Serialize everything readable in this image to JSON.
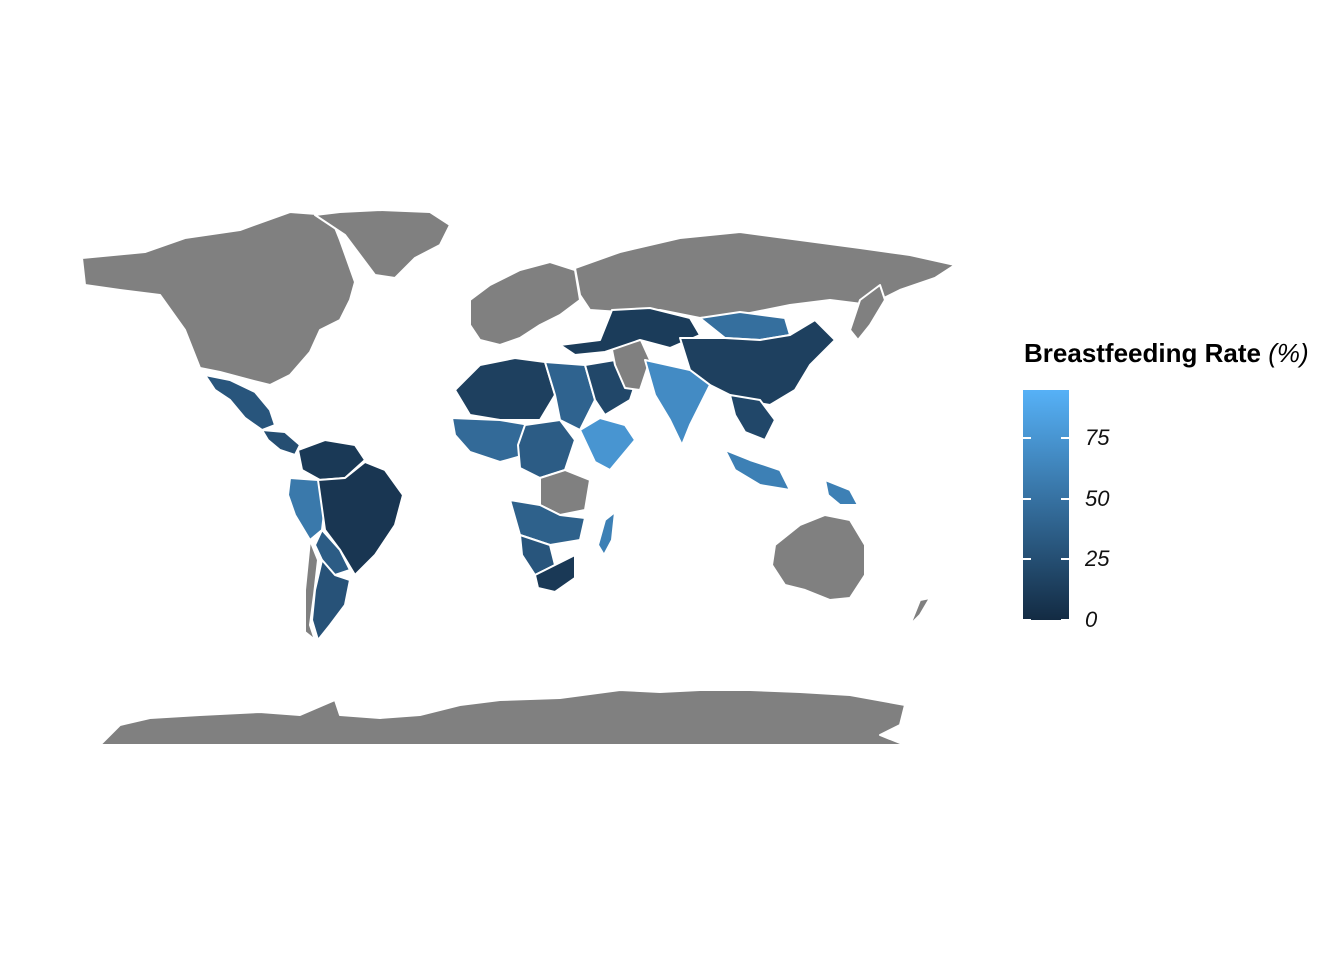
{
  "legend": {
    "title": "Breastfeeding Rate",
    "unit": "(%)",
    "low_color": "#132b43",
    "high_color": "#56b1f7",
    "range": [
      0,
      95
    ],
    "ticks": [
      {
        "value": 0,
        "label": "0"
      },
      {
        "value": 25,
        "label": "25"
      },
      {
        "value": 50,
        "label": "50"
      },
      {
        "value": 75,
        "label": "75"
      }
    ]
  },
  "no_data_color": "#808080",
  "regions": [
    {
      "name": "Canada / USA / Greenland / Russia / Europe / Australia / Antarctica",
      "value": null
    },
    {
      "name": "Mexico",
      "value": 30
    },
    {
      "name": "Central America",
      "value": 25
    },
    {
      "name": "Colombia / Venezuela",
      "value": 10
    },
    {
      "name": "Peru / Ecuador",
      "value": 55
    },
    {
      "name": "Brazil",
      "value": 8
    },
    {
      "name": "Bolivia / Paraguay",
      "value": 35
    },
    {
      "name": "Argentina",
      "value": 28
    },
    {
      "name": "Chile",
      "value": null
    },
    {
      "name": "Northwest Africa",
      "value": 15
    },
    {
      "name": "West Africa",
      "value": 45
    },
    {
      "name": "Central Africa",
      "value": 35
    },
    {
      "name": "Sudan",
      "value": 40
    },
    {
      "name": "Ethiopia / Somalia",
      "value": 75
    },
    {
      "name": "Angola / Zambia",
      "value": 38
    },
    {
      "name": "Namibia / Botswana",
      "value": 30
    },
    {
      "name": "South Africa",
      "value": 10
    },
    {
      "name": "Madagascar",
      "value": 60
    },
    {
      "name": "Arabian Peninsula",
      "value": 20
    },
    {
      "name": "Turkey / Central Asia",
      "value": 12
    },
    {
      "name": "Mongolia",
      "value": 48
    },
    {
      "name": "China",
      "value": 15
    },
    {
      "name": "India",
      "value": 68
    },
    {
      "name": "Southeast Asia",
      "value": 20
    },
    {
      "name": "Indonesia / Philippines",
      "value": 60
    }
  ]
}
